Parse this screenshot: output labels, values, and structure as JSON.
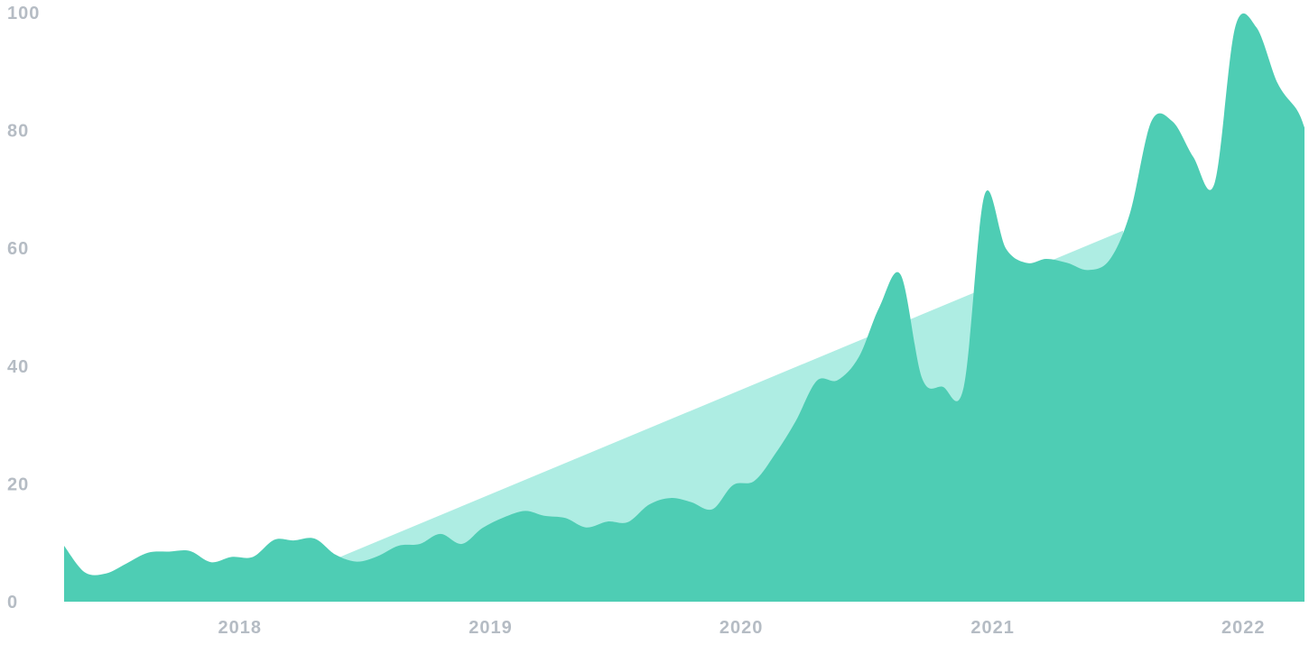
{
  "chart_data": {
    "type": "area",
    "title": "",
    "xlabel": "",
    "ylabel": "",
    "ylim": [
      0,
      100
    ],
    "xlim": [
      "2017-04-20",
      "2022-03-31"
    ],
    "grid": false,
    "legend": "none",
    "y_ticks": [
      "0",
      "20",
      "40",
      "60",
      "80",
      "100"
    ],
    "x_ticks": [
      {
        "label": "2018",
        "date": "2018-01-01"
      },
      {
        "label": "2019",
        "date": "2019-01-01"
      },
      {
        "label": "2020",
        "date": "2020-01-01"
      },
      {
        "label": "2021",
        "date": "2021-01-01"
      },
      {
        "label": "2022",
        "date": "2022-01-01"
      }
    ],
    "colors": {
      "series": "#4ecdb4",
      "trend": "#aeede3",
      "tick_text": "#b5bcc4"
    },
    "series": [
      {
        "x": [
          "2017-04-20",
          "2017-05-20",
          "2017-06-20",
          "2017-07-20",
          "2017-08-20",
          "2017-09-20",
          "2017-10-20",
          "2017-11-20",
          "2017-12-20",
          "2018-01-20",
          "2018-02-20",
          "2018-03-20",
          "2018-04-20",
          "2018-05-20",
          "2018-06-20",
          "2018-07-20",
          "2018-08-20",
          "2018-09-20",
          "2018-10-20",
          "2018-11-20",
          "2018-12-20",
          "2019-01-20",
          "2019-02-20",
          "2019-03-20",
          "2019-04-20",
          "2019-05-20",
          "2019-06-20",
          "2019-07-20",
          "2019-08-20",
          "2019-09-20",
          "2019-10-20",
          "2019-11-20",
          "2019-12-20",
          "2020-01-20",
          "2020-02-20",
          "2020-03-20",
          "2020-04-20",
          "2020-05-20",
          "2020-06-20",
          "2020-07-20",
          "2020-08-20",
          "2020-09-20",
          "2020-10-20",
          "2020-11-20",
          "2020-12-20",
          "2021-01-20",
          "2021-02-20",
          "2021-03-20",
          "2021-04-20",
          "2021-05-20",
          "2021-06-20",
          "2021-07-20",
          "2021-08-20",
          "2021-09-20",
          "2021-10-20",
          "2021-11-20",
          "2021-12-20",
          "2022-01-20",
          "2022-02-20",
          "2022-03-20",
          "2022-03-31"
        ],
        "values": [
          9.5,
          5,
          4.8,
          6.5,
          8.3,
          8.5,
          8.6,
          6.7,
          7.6,
          7.6,
          10.5,
          10.4,
          10.7,
          8,
          6.8,
          7.7,
          9.5,
          9.8,
          11.5,
          9.8,
          12.5,
          14.3,
          15.4,
          14.6,
          14.2,
          12.6,
          13.6,
          13.5,
          16.5,
          17.6,
          16.9,
          15.7,
          19.8,
          20.5,
          25.2,
          30.6,
          37.5,
          37.6,
          41.5,
          50,
          55.5,
          38,
          36.5,
          36.5,
          69,
          60,
          57.5,
          58.2,
          57.5,
          56.3,
          58,
          66,
          81.5,
          81.5,
          75.5,
          71,
          97.5,
          97.5,
          88,
          83.5,
          80.5
        ]
      },
      {
        "x": [
          "2018-05-25",
          "2021-07-10"
        ],
        "values": [
          7.5,
          63
        ]
      }
    ]
  }
}
